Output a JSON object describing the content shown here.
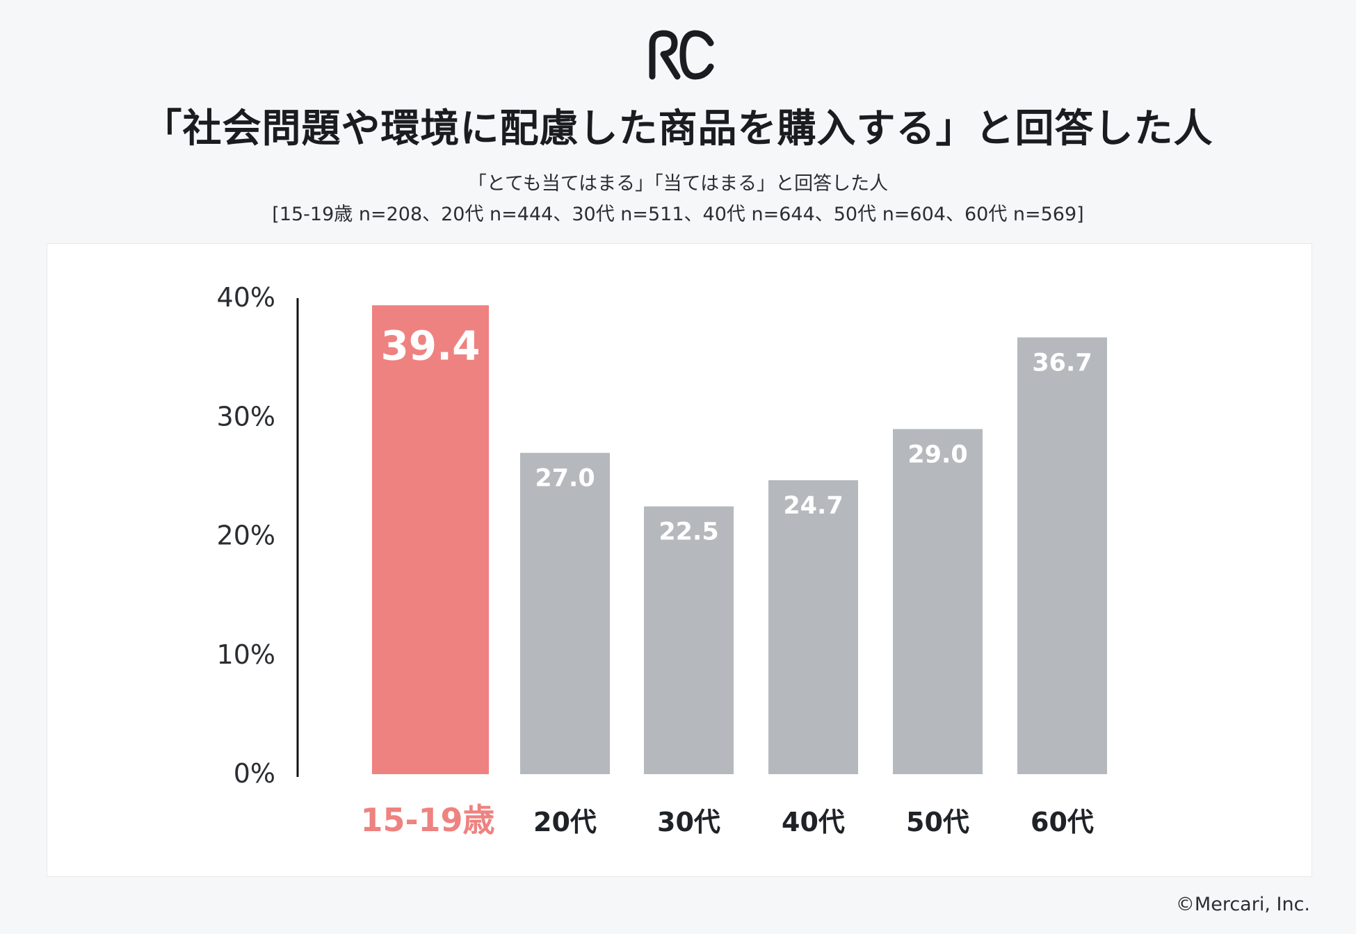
{
  "logo": {
    "name": "rc-logo"
  },
  "header": {
    "title": "「社会問題や環境に配慮した商品を購入する」と回答した人",
    "subtitle_line1": "「とても当てはまる」「当てはまる」と回答した人",
    "subtitle_line2": "[15-19歳 n=208、20代 n=444、30代 n=511、40代 n=644、50代 n=604、60代 n=569]"
  },
  "colors": {
    "highlight": "#ee8280",
    "bar": "#b5b9bd",
    "axis": "#111111",
    "value_text": "#ffffff",
    "category_text": "#1f2226"
  },
  "chart_data": {
    "type": "bar",
    "title": "「社会問題や環境に配慮した商品を購入する」と回答した人",
    "categories": [
      "15-19歳",
      "20代",
      "30代",
      "40代",
      "50代",
      "60代"
    ],
    "values": [
      39.4,
      27.0,
      22.5,
      24.7,
      29.0,
      36.7
    ],
    "value_labels": [
      "39.4",
      "27.0",
      "22.5",
      "24.7",
      "29.0",
      "36.7"
    ],
    "highlight_index": 0,
    "ylim": [
      0,
      40
    ],
    "yticks": [
      0,
      10,
      20,
      30,
      40
    ],
    "ytick_labels": [
      "0%",
      "10%",
      "20%",
      "30%",
      "40%"
    ],
    "xlabel": "",
    "ylabel": "",
    "grid": false
  },
  "footer": {
    "copyright": "©Mercari, Inc."
  }
}
